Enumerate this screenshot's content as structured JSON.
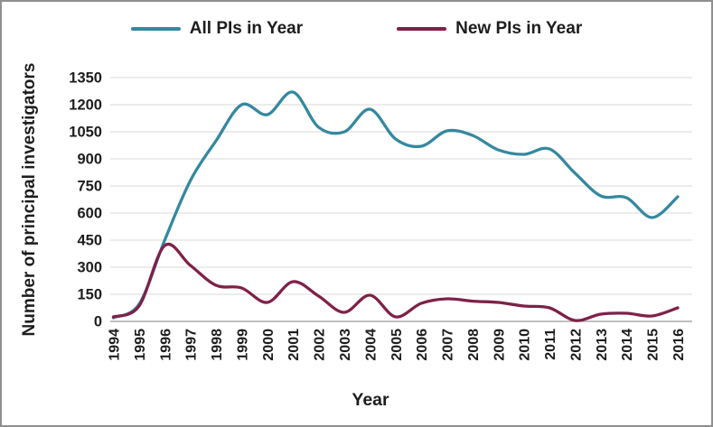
{
  "frame": {
    "background": "#ffffff",
    "border_color": "#8f8f8f"
  },
  "legend": {
    "position": "top-center",
    "items": [
      {
        "label": "All PIs in Year",
        "color": "#35889f"
      },
      {
        "label": "New PIs in Year",
        "color": "#7e2149"
      }
    ]
  },
  "chart_data": {
    "type": "line",
    "smooth": true,
    "title": "",
    "xlabel": "Year",
    "ylabel": "Number of  principal investigators",
    "ylim": [
      0,
      1350
    ],
    "yticks": [
      0,
      150,
      300,
      450,
      600,
      750,
      900,
      1050,
      1200,
      1350
    ],
    "grid": true,
    "legend_position": "top",
    "x": [
      1994,
      1995,
      1996,
      1997,
      1998,
      1999,
      2000,
      2001,
      2002,
      2003,
      2004,
      2005,
      2006,
      2007,
      2008,
      2009,
      2010,
      2011,
      2012,
      2013,
      2014,
      2015,
      2016
    ],
    "series": [
      {
        "name": "All PIs in Year",
        "color": "#35889f",
        "values": [
          20,
          95,
          450,
          780,
          1000,
          1200,
          1145,
          1270,
          1075,
          1050,
          1175,
          1010,
          970,
          1055,
          1030,
          950,
          925,
          955,
          820,
          695,
          685,
          575,
          690
        ]
      },
      {
        "name": "New PIs in Year",
        "color": "#7e2149",
        "values": [
          25,
          85,
          420,
          310,
          200,
          185,
          105,
          220,
          140,
          50,
          145,
          25,
          100,
          125,
          112,
          105,
          85,
          75,
          5,
          40,
          45,
          30,
          75
        ]
      }
    ]
  },
  "colors": {
    "gridline": "#d9d9d9",
    "zero_axis_line": "#ababab",
    "tick_text": "#1d1d1d",
    "axis_title_text": "#1d1d1d"
  }
}
